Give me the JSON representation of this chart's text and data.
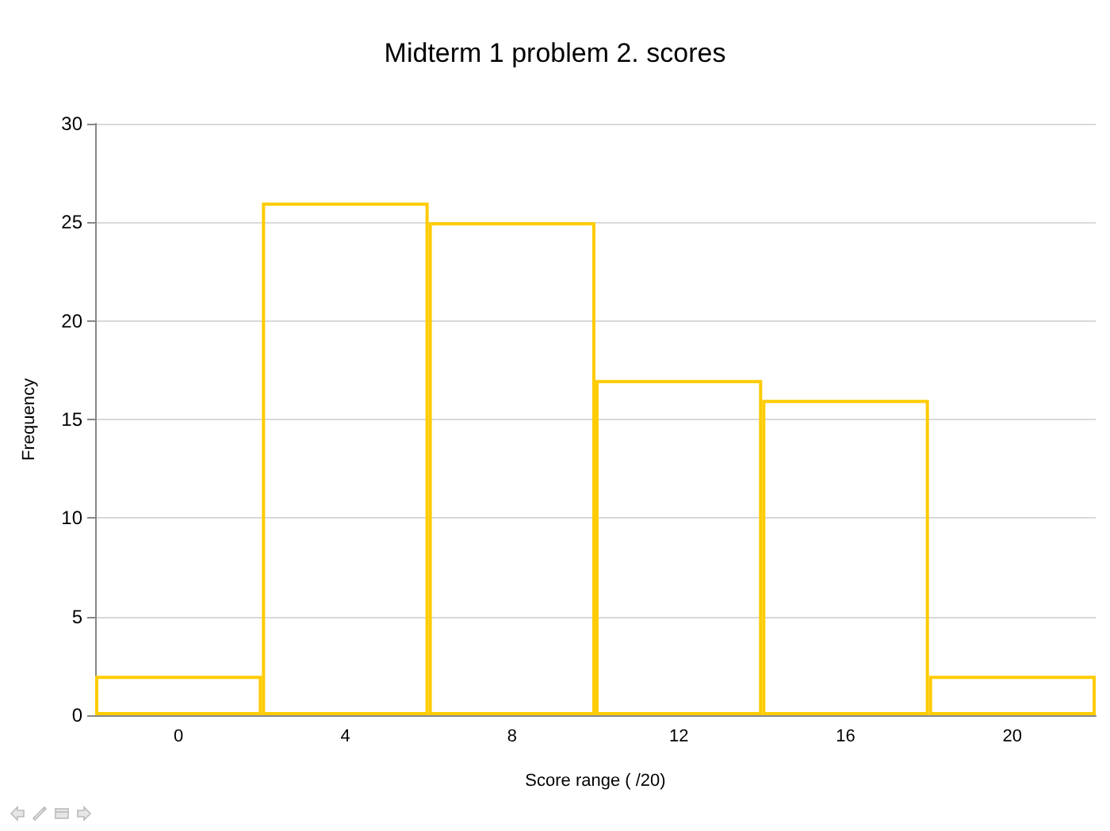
{
  "chart_data": {
    "type": "bar",
    "title": "Midterm 1 problem 2. scores",
    "xlabel": "Score range ( /20)",
    "ylabel": "Frequency",
    "categories": [
      "0",
      "4",
      "8",
      "12",
      "16",
      "20"
    ],
    "values": [
      2,
      26,
      25,
      17,
      16,
      2
    ],
    "color": "#ffcc00",
    "ylim": [
      0,
      30
    ],
    "yticks": [
      0,
      5,
      10,
      15,
      20,
      25,
      30
    ],
    "grid": "y"
  }
}
